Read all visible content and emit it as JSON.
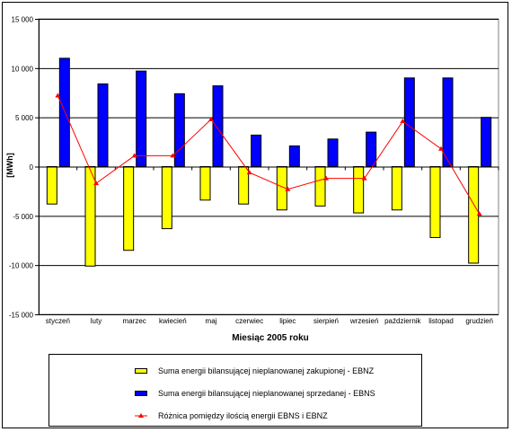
{
  "chart_data": {
    "type": "bar",
    "xlabel": "Miesiąc 2005 roku",
    "ylabel": "[MWh]",
    "ylim": [
      -15000,
      15000
    ],
    "yticks": [
      15000,
      10000,
      5000,
      0,
      -5000,
      -10000,
      -15000
    ],
    "ytick_labels": [
      "15 000",
      "10 000",
      "5 000",
      "0",
      "-5 000",
      "-10 000",
      "-15 000"
    ],
    "grid": true,
    "legend_position": "bottom",
    "categories": [
      "styczeń",
      "luty",
      "marzec",
      "kwiecień",
      "maj",
      "czerwiec",
      "lipiec",
      "sierpień",
      "wrzesień",
      "październik",
      "listopad",
      "grudzień"
    ],
    "series": [
      {
        "name": "Suma energii bilansującej nieplanowanej zakupionej  - EBNZ",
        "type": "bar",
        "color": "#ffff00",
        "values": [
          -3800,
          -10100,
          -8500,
          -6300,
          -3400,
          -3800,
          -4400,
          -4000,
          -4700,
          -4400,
          -7200,
          -9800
        ]
      },
      {
        "name": "Suma energii bilansującej nieplanowanej sprzedanej  - EBNS",
        "type": "bar",
        "color": "#0000ff",
        "values": [
          11000,
          8400,
          9700,
          7400,
          8200,
          3200,
          2100,
          2800,
          3500,
          9000,
          9000,
          5000
        ]
      },
      {
        "name": "Różnica pomiędzy ilością energii EBNS i EBNZ",
        "type": "line",
        "color": "#ff0000",
        "values": [
          7200,
          -1700,
          1100,
          1100,
          4800,
          -600,
          -2300,
          -1200,
          -1200,
          4600,
          1800,
          -4800
        ]
      }
    ]
  }
}
